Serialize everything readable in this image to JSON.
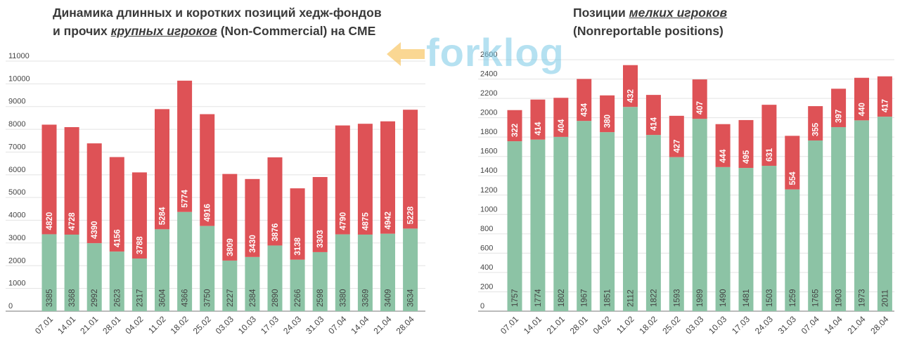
{
  "left_title": {
    "line1": "Динамика длинных и коротких позиций хедж-фондов",
    "line2_prefix": "и прочих ",
    "line2_em": "крупных игроков",
    "line2_suffix": " (Non-Commercial) на CME"
  },
  "right_title": {
    "line1_prefix": "Позиции ",
    "line1_em": "мелких игроков",
    "line2": "(Nonreportable positions)"
  },
  "logo": {
    "text": "forklog"
  },
  "colors": {
    "long": "#8cc3a5",
    "short": "#de5256",
    "grid": "#e3e3e3",
    "axis": "#777777",
    "label_light": "#ffffff",
    "label_dark": "#444444"
  },
  "chart_data": [
    {
      "type": "bar",
      "stacked": true,
      "categories": [
        "07.01",
        "14.01",
        "21.01",
        "28.01",
        "04.02",
        "11.02",
        "18.02",
        "25.02",
        "03.03",
        "10.03",
        "17.03",
        "24.03",
        "31.03",
        "07.04",
        "14.04",
        "21.04",
        "28.04"
      ],
      "series": [
        {
          "values": [
            3385,
            3368,
            2992,
            2623,
            2317,
            3604,
            4366,
            3750,
            2227,
            2384,
            2890,
            2266,
            2598,
            3380,
            3369,
            3409,
            3634
          ]
        },
        {
          "values": [
            4820,
            4728,
            4390,
            4156,
            3788,
            5284,
            5774,
            4916,
            3809,
            3430,
            3876,
            3138,
            3303,
            4790,
            4875,
            4942,
            5228
          ]
        }
      ],
      "y_ticks": [
        0,
        1000,
        2000,
        3000,
        4000,
        5000,
        6000,
        7000,
        8000,
        9000,
        10000,
        11000
      ],
      "ylim": [
        0,
        11000
      ],
      "grid": true
    },
    {
      "type": "bar",
      "stacked": true,
      "categories": [
        "07.01",
        "14.01",
        "21.01",
        "28.01",
        "04.02",
        "11.02",
        "18.02",
        "25.02",
        "03.03",
        "10.03",
        "17.03",
        "24.03",
        "31.03",
        "07.04",
        "14.04",
        "21.04",
        "28.04"
      ],
      "series": [
        {
          "values": [
            1757,
            1774,
            1802,
            1967,
            1851,
            2112,
            1822,
            1593,
            1989,
            1490,
            1481,
            1503,
            1259,
            1765,
            1903,
            1973,
            2011
          ]
        },
        {
          "values": [
            322,
            414,
            404,
            434,
            380,
            432,
            414,
            427,
            407,
            444,
            495,
            631,
            554,
            355,
            397,
            440,
            417
          ]
        }
      ],
      "y_ticks": [
        0,
        200,
        400,
        600,
        800,
        1000,
        1200,
        1400,
        1600,
        1800,
        2000,
        2200,
        2400,
        2600
      ],
      "ylim": [
        0,
        2600
      ],
      "grid": true
    }
  ]
}
